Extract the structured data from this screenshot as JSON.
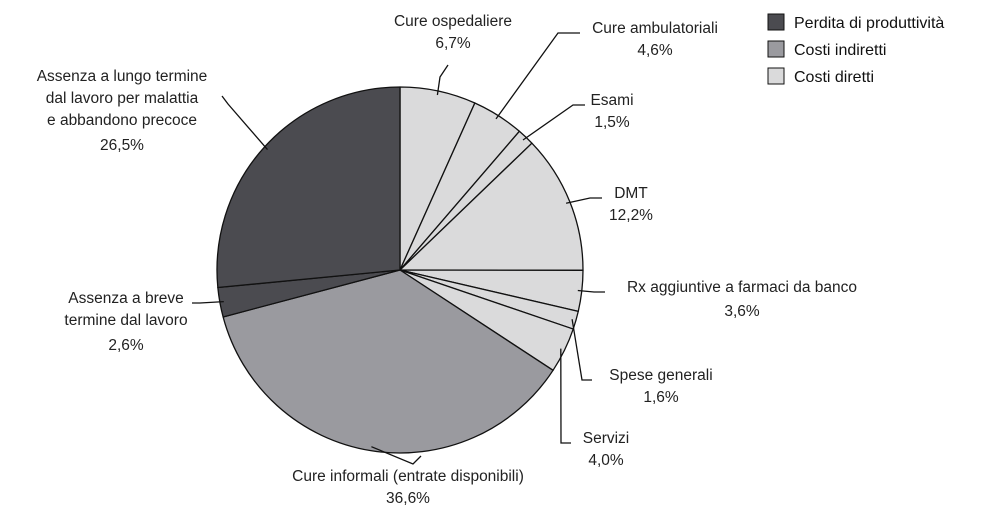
{
  "chart_data": {
    "type": "pie",
    "colors": {
      "productivity": "#4b4b50",
      "indirect": "#9a9a9f",
      "direct": "#dadadb",
      "stroke": "#111111"
    },
    "legend": {
      "placement": "top-right",
      "entries": [
        {
          "name": "Perdita di produttività",
          "category": "productivity"
        },
        {
          "name": "Costi indiretti",
          "category": "indirect"
        },
        {
          "name": "Costi diretti",
          "category": "direct"
        }
      ]
    },
    "slices": [
      {
        "label_lines": [
          "Cure ospedaliere"
        ],
        "value_text": "6,7%",
        "value": 6.7,
        "category": "direct"
      },
      {
        "label_lines": [
          "Cure ambulatoriali"
        ],
        "value_text": "4,6%",
        "value": 4.6,
        "category": "direct"
      },
      {
        "label_lines": [
          "Esami"
        ],
        "value_text": "1,5%",
        "value": 1.5,
        "category": "direct"
      },
      {
        "label_lines": [
          "DMT"
        ],
        "value_text": "12,2%",
        "value": 12.2,
        "category": "direct"
      },
      {
        "label_lines": [
          "Rx aggiuntive a farmaci da banco"
        ],
        "value_text": "3,6%",
        "value": 3.6,
        "category": "direct"
      },
      {
        "label_lines": [
          "Spese generali"
        ],
        "value_text": "1,6%",
        "value": 1.6,
        "category": "direct"
      },
      {
        "label_lines": [
          "Servizi"
        ],
        "value_text": "4,0%",
        "value": 4.0,
        "category": "direct"
      },
      {
        "label_lines": [
          "Cure informali (entrate disponibili)"
        ],
        "value_text": "36,6%",
        "value": 36.6,
        "category": "indirect"
      },
      {
        "label_lines": [
          "Assenza a breve",
          "termine dal lavoro"
        ],
        "value_text": "2,6%",
        "value": 2.6,
        "category": "productivity"
      },
      {
        "label_lines": [
          "Assenza a lungo termine",
          "dal lavoro per malattia",
          "e abbandono precoce"
        ],
        "value_text": "26,5%",
        "value": 26.5,
        "category": "productivity"
      }
    ]
  }
}
